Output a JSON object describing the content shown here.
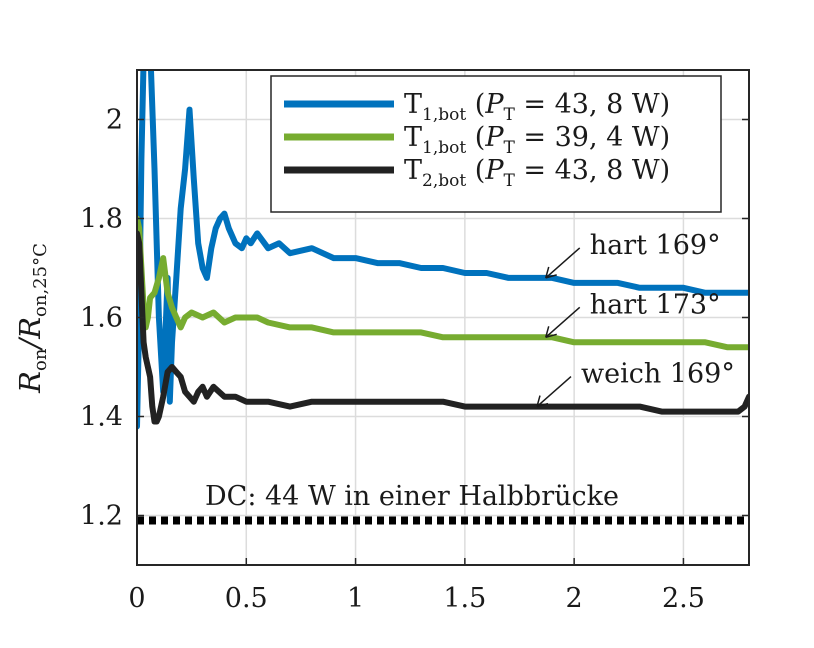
{
  "chart_data": {
    "type": "line",
    "title": "",
    "xlabel": "",
    "ylabel": {
      "main": "R",
      "main_sub": "on",
      "slash": "/R",
      "denom_sub": "on,25°C"
    },
    "xlim": [
      0,
      2.8
    ],
    "ylim": [
      1.1,
      2.1
    ],
    "xticks": [
      0,
      0.5,
      1,
      1.5,
      2,
      2.5
    ],
    "xtick_labels": [
      "0",
      "0.5",
      "1",
      "1.5",
      "2",
      "2.5"
    ],
    "yticks": [
      1.2,
      1.4,
      1.6,
      1.8,
      2.0
    ],
    "ytick_labels": [
      "1.2",
      "1.4",
      "1.6",
      "1.8",
      "2"
    ],
    "grid": true,
    "legend_position": "top-right",
    "series": [
      {
        "name": "T1,bot (PT = 43,8 W)",
        "legend": {
          "T": "T",
          "T_sub": "1,bot",
          "P": "P",
          "P_sub": "T",
          "rest": " = 43, 8 W)"
        },
        "color": "#0072bd",
        "points": [
          [
            0,
            1.38
          ],
          [
            0.01,
            1.6
          ],
          [
            0.02,
            1.92
          ],
          [
            0.03,
            2.12
          ],
          [
            0.05,
            2.15
          ],
          [
            0.06,
            2.15
          ],
          [
            0.08,
            1.9
          ],
          [
            0.1,
            1.6
          ],
          [
            0.12,
            1.45
          ],
          [
            0.14,
            1.68
          ],
          [
            0.15,
            1.43
          ],
          [
            0.16,
            1.55
          ],
          [
            0.18,
            1.68
          ],
          [
            0.2,
            1.82
          ],
          [
            0.22,
            1.9
          ],
          [
            0.24,
            2.02
          ],
          [
            0.26,
            1.88
          ],
          [
            0.28,
            1.75
          ],
          [
            0.3,
            1.7
          ],
          [
            0.32,
            1.68
          ],
          [
            0.34,
            1.74
          ],
          [
            0.36,
            1.78
          ],
          [
            0.38,
            1.8
          ],
          [
            0.4,
            1.81
          ],
          [
            0.42,
            1.78
          ],
          [
            0.45,
            1.75
          ],
          [
            0.48,
            1.74
          ],
          [
            0.5,
            1.76
          ],
          [
            0.52,
            1.75
          ],
          [
            0.55,
            1.77
          ],
          [
            0.6,
            1.74
          ],
          [
            0.65,
            1.75
          ],
          [
            0.7,
            1.73
          ],
          [
            0.8,
            1.74
          ],
          [
            0.9,
            1.72
          ],
          [
            1.0,
            1.72
          ],
          [
            1.1,
            1.71
          ],
          [
            1.2,
            1.71
          ],
          [
            1.3,
            1.7
          ],
          [
            1.4,
            1.7
          ],
          [
            1.5,
            1.69
          ],
          [
            1.6,
            1.69
          ],
          [
            1.7,
            1.68
          ],
          [
            1.8,
            1.68
          ],
          [
            1.9,
            1.68
          ],
          [
            2.0,
            1.67
          ],
          [
            2.1,
            1.67
          ],
          [
            2.2,
            1.67
          ],
          [
            2.3,
            1.66
          ],
          [
            2.4,
            1.66
          ],
          [
            2.5,
            1.66
          ],
          [
            2.6,
            1.65
          ],
          [
            2.7,
            1.65
          ],
          [
            2.8,
            1.65
          ]
        ]
      },
      {
        "name": "T1,bot (PT = 39,4 W)",
        "legend": {
          "T": "T",
          "T_sub": "1,bot",
          "P": "P",
          "P_sub": "T",
          "rest": " = 39, 4 W)"
        },
        "color": "#77ac30",
        "points": [
          [
            0,
            1.8
          ],
          [
            0.01,
            1.78
          ],
          [
            0.02,
            1.7
          ],
          [
            0.03,
            1.62
          ],
          [
            0.04,
            1.58
          ],
          [
            0.05,
            1.6
          ],
          [
            0.06,
            1.64
          ],
          [
            0.08,
            1.65
          ],
          [
            0.1,
            1.68
          ],
          [
            0.12,
            1.72
          ],
          [
            0.14,
            1.65
          ],
          [
            0.16,
            1.62
          ],
          [
            0.18,
            1.6
          ],
          [
            0.2,
            1.58
          ],
          [
            0.22,
            1.6
          ],
          [
            0.25,
            1.61
          ],
          [
            0.3,
            1.6
          ],
          [
            0.35,
            1.61
          ],
          [
            0.4,
            1.59
          ],
          [
            0.45,
            1.6
          ],
          [
            0.5,
            1.6
          ],
          [
            0.55,
            1.6
          ],
          [
            0.6,
            1.59
          ],
          [
            0.7,
            1.58
          ],
          [
            0.8,
            1.58
          ],
          [
            0.9,
            1.57
          ],
          [
            1.0,
            1.57
          ],
          [
            1.1,
            1.57
          ],
          [
            1.2,
            1.57
          ],
          [
            1.3,
            1.57
          ],
          [
            1.4,
            1.56
          ],
          [
            1.5,
            1.56
          ],
          [
            1.6,
            1.56
          ],
          [
            1.7,
            1.56
          ],
          [
            1.8,
            1.56
          ],
          [
            1.9,
            1.56
          ],
          [
            2.0,
            1.55
          ],
          [
            2.1,
            1.55
          ],
          [
            2.2,
            1.55
          ],
          [
            2.3,
            1.55
          ],
          [
            2.4,
            1.55
          ],
          [
            2.5,
            1.55
          ],
          [
            2.6,
            1.55
          ],
          [
            2.7,
            1.54
          ],
          [
            2.8,
            1.54
          ]
        ]
      },
      {
        "name": "T2,bot (PT = 43,8 W)",
        "legend": {
          "T": "T",
          "T_sub": "2,bot",
          "P": "P",
          "P_sub": "T",
          "rest": " = 43, 8 W)"
        },
        "color": "#222222",
        "points": [
          [
            0,
            1.77
          ],
          [
            0.01,
            1.75
          ],
          [
            0.02,
            1.65
          ],
          [
            0.03,
            1.55
          ],
          [
            0.04,
            1.52
          ],
          [
            0.05,
            1.5
          ],
          [
            0.06,
            1.48
          ],
          [
            0.07,
            1.42
          ],
          [
            0.08,
            1.39
          ],
          [
            0.09,
            1.39
          ],
          [
            0.1,
            1.4
          ],
          [
            0.12,
            1.44
          ],
          [
            0.14,
            1.49
          ],
          [
            0.16,
            1.5
          ],
          [
            0.18,
            1.49
          ],
          [
            0.2,
            1.48
          ],
          [
            0.22,
            1.45
          ],
          [
            0.24,
            1.44
          ],
          [
            0.26,
            1.43
          ],
          [
            0.28,
            1.45
          ],
          [
            0.3,
            1.46
          ],
          [
            0.32,
            1.44
          ],
          [
            0.35,
            1.46
          ],
          [
            0.4,
            1.44
          ],
          [
            0.45,
            1.44
          ],
          [
            0.5,
            1.43
          ],
          [
            0.6,
            1.43
          ],
          [
            0.7,
            1.42
          ],
          [
            0.8,
            1.43
          ],
          [
            0.9,
            1.43
          ],
          [
            1.0,
            1.43
          ],
          [
            1.1,
            1.43
          ],
          [
            1.2,
            1.43
          ],
          [
            1.3,
            1.43
          ],
          [
            1.4,
            1.43
          ],
          [
            1.5,
            1.42
          ],
          [
            1.6,
            1.42
          ],
          [
            1.7,
            1.42
          ],
          [
            1.8,
            1.42
          ],
          [
            1.9,
            1.42
          ],
          [
            2.0,
            1.42
          ],
          [
            2.1,
            1.42
          ],
          [
            2.2,
            1.42
          ],
          [
            2.3,
            1.42
          ],
          [
            2.4,
            1.41
          ],
          [
            2.5,
            1.41
          ],
          [
            2.6,
            1.41
          ],
          [
            2.7,
            1.41
          ],
          [
            2.75,
            1.41
          ],
          [
            2.78,
            1.42
          ],
          [
            2.8,
            1.44
          ]
        ]
      }
    ],
    "reference_line": {
      "y": 1.19,
      "style": "dotted",
      "color": "#000000",
      "label": "DC: 44 W in einer Halbbrücke"
    },
    "annotations": [
      {
        "text": "hart 169°",
        "arrow_to": [
          1.87,
          1.68
        ]
      },
      {
        "text": "hart 173°",
        "arrow_to": [
          1.87,
          1.56
        ]
      },
      {
        "text": "weich 169°",
        "arrow_to": [
          1.83,
          1.42
        ]
      }
    ]
  }
}
